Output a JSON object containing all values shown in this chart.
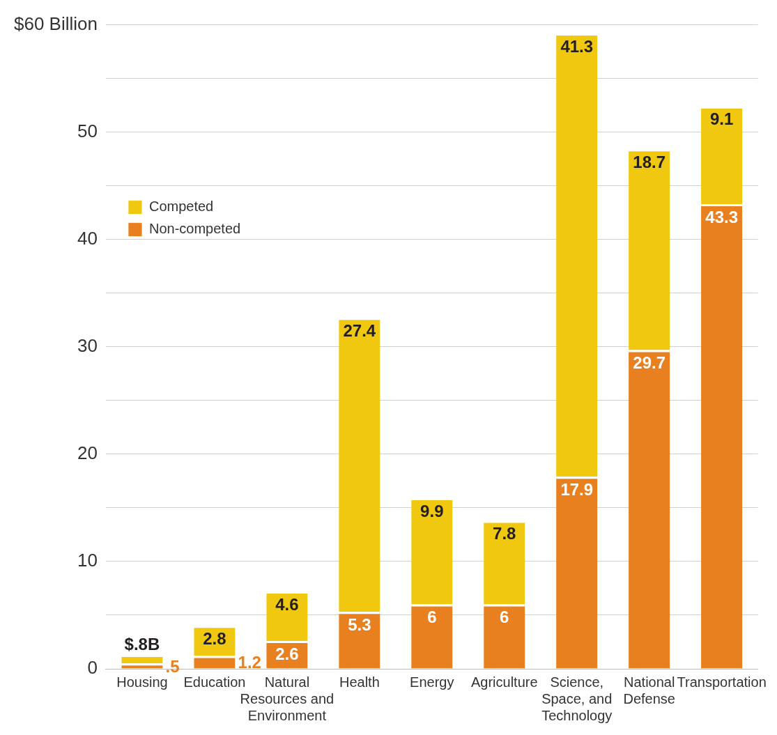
{
  "chart_data": {
    "type": "bar",
    "stacked": true,
    "categories": [
      "Housing",
      "Education",
      "Natural Resources and Environment",
      "Health",
      "Energy",
      "Agriculture",
      "Science, Space, and Technology",
      "National Defense",
      "Transportation"
    ],
    "series": [
      {
        "name": "Non-competed",
        "color": "#e8801f",
        "values": [
          0.5,
          1.2,
          2.6,
          5.3,
          6,
          6,
          17.9,
          29.7,
          43.3
        ],
        "value_labels": [
          ".5",
          "1.2",
          "2.6",
          "5.3",
          "6",
          "6",
          "17.9",
          "29.7",
          "43.3"
        ]
      },
      {
        "name": "Competed",
        "color": "#f0c80f",
        "values": [
          0.8,
          2.8,
          4.6,
          27.4,
          9.9,
          7.8,
          41.3,
          18.7,
          9.1
        ],
        "value_labels": [
          "$.8B",
          "2.8",
          "4.6",
          "27.4",
          "9.9",
          "7.8",
          "41.3",
          "18.7",
          "9.1"
        ]
      }
    ],
    "ylim": [
      0,
      60
    ],
    "yticks": [
      0,
      {
        "value": 5,
        "label": null
      },
      10,
      {
        "value": 15,
        "label": null
      },
      20,
      {
        "value": 25,
        "label": null
      },
      30,
      {
        "value": 35,
        "label": null
      },
      40,
      {
        "value": 45,
        "label": null
      },
      50,
      {
        "value": 55,
        "label": null
      },
      {
        "value": 60,
        "label": "$60 Billion"
      }
    ],
    "grid": "y",
    "legend": "top left"
  }
}
